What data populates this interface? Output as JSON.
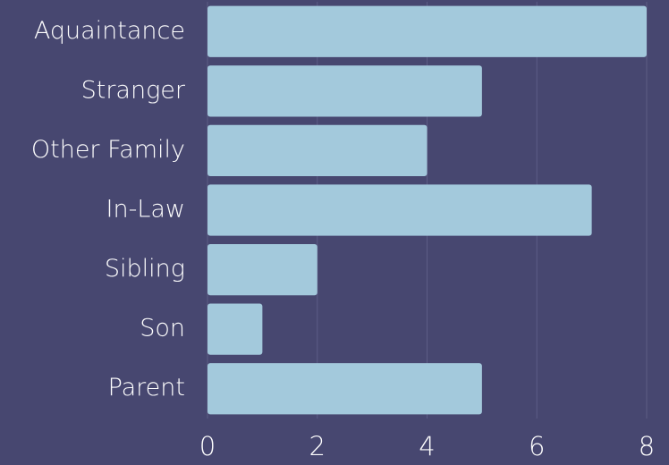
{
  "chart_data": {
    "type": "bar",
    "orientation": "horizontal",
    "categories": [
      "Aquaintance",
      "Stranger",
      "Other Family",
      "In-Law",
      "Sibling",
      "Son",
      "Parent"
    ],
    "values": [
      8,
      5,
      4,
      7,
      2,
      1,
      5
    ],
    "color": "#a3c9dc",
    "xlim": [
      0,
      8
    ],
    "xticks": [
      0,
      2,
      4,
      6,
      8
    ],
    "grid": true
  }
}
